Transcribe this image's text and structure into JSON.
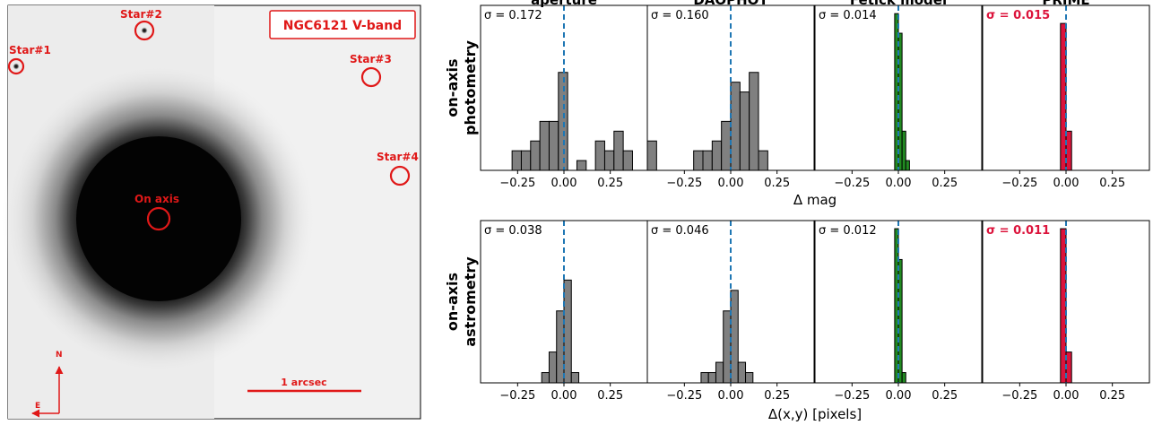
{
  "image_panel": {
    "title": "NGC6121 V-band",
    "stars": [
      {
        "label": "Star#1"
      },
      {
        "label": "Star#2"
      },
      {
        "label": "Star#3"
      },
      {
        "label": "Star#4"
      },
      {
        "label": "On axis"
      }
    ],
    "scale_label": "1 arcsec",
    "north_label": "N",
    "east_label": "E",
    "colors": {
      "annotation": "#e01818",
      "background": "#f2f2f2",
      "core": "#050505"
    }
  },
  "colors": {
    "gray": "#808080",
    "green": "#228b22",
    "crimson": "#dc143c",
    "median_line": "#1f77b4"
  },
  "chart_data": [
    {
      "type": "histogram",
      "row_title": [
        "on-axis",
        "photometry"
      ],
      "xlabel": "Δ mag",
      "xlim": [
        -0.45,
        0.45
      ],
      "xticks": [
        -0.25,
        0.0,
        0.25
      ],
      "xtick_labels": [
        "−0.25",
        "0.00",
        "0.25"
      ],
      "panels": [
        {
          "title": "aperture",
          "sigma_label": "σ = 0.172",
          "sigma_bold": false,
          "color": "gray",
          "bins": [
            -0.28,
            -0.23,
            -0.18,
            -0.13,
            -0.08,
            -0.03,
            0.02,
            0.07,
            0.12,
            0.17,
            0.22,
            0.27,
            0.32,
            0.37
          ],
          "counts": [
            2,
            2,
            3,
            5,
            5,
            10,
            0,
            1,
            0,
            3,
            2,
            4,
            2
          ]
        },
        {
          "title": "DAOPHOT",
          "sigma_label": "σ = 0.160",
          "sigma_bold": false,
          "color": "gray",
          "bins": [
            -0.45,
            -0.4,
            -0.35,
            -0.3,
            -0.25,
            -0.2,
            -0.15,
            -0.1,
            -0.05,
            0.0,
            0.05,
            0.1,
            0.15,
            0.2,
            0.25
          ],
          "counts": [
            3,
            0,
            0,
            0,
            0,
            2,
            2,
            3,
            5,
            9,
            8,
            10,
            2,
            0
          ]
        },
        {
          "title": "Fetick model",
          "sigma_label": "σ = 0.014",
          "sigma_bold": false,
          "color": "green",
          "bins": [
            -0.02,
            0.0,
            0.02,
            0.04,
            0.06
          ],
          "counts": [
            16,
            14,
            4,
            1
          ]
        },
        {
          "title": "PRIME",
          "sigma_label": "σ = 0.015",
          "sigma_bold": true,
          "color": "crimson",
          "bins": [
            -0.03,
            0.0,
            0.03,
            0.06
          ],
          "counts": [
            15,
            4,
            0
          ]
        }
      ]
    },
    {
      "type": "histogram",
      "row_title": [
        "on-axis",
        "astrometry"
      ],
      "xlabel": "Δ(x,y) [pixels]",
      "xlim": [
        -0.45,
        0.45
      ],
      "xticks": [
        -0.25,
        0.0,
        0.25
      ],
      "xtick_labels": [
        "−0.25",
        "0.00",
        "0.25"
      ],
      "panels": [
        {
          "title": "aperture",
          "sigma_label": "σ = 0.038",
          "sigma_bold": false,
          "color": "gray",
          "bins": [
            -0.12,
            -0.08,
            -0.04,
            0.0,
            0.04,
            0.08
          ],
          "counts": [
            1,
            3,
            7,
            10,
            1
          ]
        },
        {
          "title": "DAOPHOT",
          "sigma_label": "σ = 0.046",
          "sigma_bold": false,
          "color": "gray",
          "bins": [
            -0.16,
            -0.12,
            -0.08,
            -0.04,
            0.0,
            0.04,
            0.08,
            0.12
          ],
          "counts": [
            1,
            1,
            2,
            7,
            9,
            2,
            1
          ]
        },
        {
          "title": "Fetick model",
          "sigma_label": "σ = 0.012",
          "sigma_bold": false,
          "color": "green",
          "bins": [
            -0.02,
            0.0,
            0.02,
            0.04
          ],
          "counts": [
            15,
            12,
            1
          ]
        },
        {
          "title": "PRIME",
          "sigma_label": "σ = 0.011",
          "sigma_bold": true,
          "color": "crimson",
          "bins": [
            -0.03,
            0.0,
            0.03,
            0.06
          ],
          "counts": [
            15,
            3,
            0
          ]
        }
      ]
    }
  ]
}
